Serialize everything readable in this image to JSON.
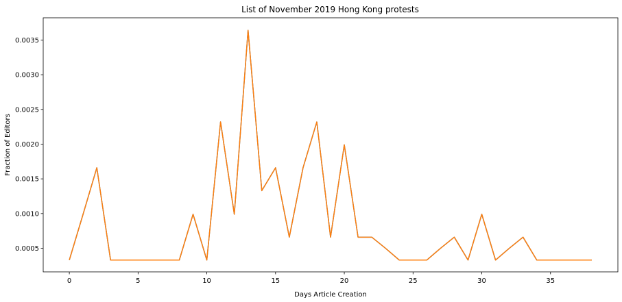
{
  "chart_data": {
    "type": "line",
    "title": "List of November 2019 Hong Kong protests",
    "xlabel": "Days Article Creation",
    "ylabel": "Fraction of Editors",
    "xlim": [
      -1.9,
      39.9
    ],
    "ylim": [
      0.00016,
      0.00382
    ],
    "xticks": [
      0,
      5,
      10,
      15,
      20,
      25,
      30,
      35
    ],
    "yticks": [
      0.0005,
      0.001,
      0.0015,
      0.002,
      0.0025,
      0.003,
      0.0035
    ],
    "xtick_labels": [
      "0",
      "5",
      "10",
      "15",
      "20",
      "25",
      "30",
      "35"
    ],
    "ytick_labels": [
      "0.0005",
      "0.0010",
      "0.0015",
      "0.0020",
      "0.0025",
      "0.0030",
      "0.0035"
    ],
    "grid": false,
    "series": [
      {
        "color": "#1f77b4",
        "x": [
          0,
          1,
          2,
          3,
          4,
          5,
          6,
          7,
          8,
          9,
          10,
          11,
          12,
          13,
          14,
          15,
          16,
          17,
          18,
          19,
          20,
          21,
          22,
          23,
          24,
          25,
          26,
          27,
          28,
          29,
          30,
          31,
          32,
          33,
          34,
          35,
          36,
          37,
          38
        ],
        "values": [
          0.00033,
          0.00099,
          0.00166,
          0.00033,
          0.00033,
          0.00033,
          0.00033,
          0.00033,
          0.00033,
          0.00099,
          0.00033,
          0.00232,
          0.00099,
          0.00364,
          0.00133,
          0.00166,
          0.00066,
          0.00166,
          0.00232,
          0.00066,
          0.00199,
          0.00066,
          0.00066,
          0.0005,
          0.00033,
          0.00033,
          0.00033,
          0.0005,
          0.00066,
          0.00033,
          0.00099,
          0.00033,
          0.0005,
          0.00066,
          0.00033,
          0.00033,
          0.00033,
          0.00033,
          0.00033
        ]
      },
      {
        "color": "#ff7f0e",
        "x": [
          0,
          1,
          2,
          3,
          4,
          5,
          6,
          7,
          8,
          9,
          10,
          11,
          12,
          13,
          14,
          15,
          16,
          17,
          18,
          19,
          20,
          21,
          22,
          23,
          24,
          25,
          26,
          27,
          28,
          29,
          30,
          31,
          32,
          33,
          34,
          35,
          36,
          37,
          38
        ],
        "values": [
          0.00033,
          0.00099,
          0.00166,
          0.00033,
          0.00033,
          0.00033,
          0.00033,
          0.00033,
          0.00033,
          0.00099,
          0.00033,
          0.00232,
          0.00099,
          0.00364,
          0.00133,
          0.00166,
          0.00066,
          0.00166,
          0.00232,
          0.00066,
          0.00199,
          0.00066,
          0.00066,
          0.0005,
          0.00033,
          0.00033,
          0.00033,
          0.0005,
          0.00066,
          0.00033,
          0.00099,
          0.00033,
          0.0005,
          0.00066,
          0.00033,
          0.00033,
          0.00033,
          0.00033,
          0.00033
        ]
      }
    ]
  }
}
